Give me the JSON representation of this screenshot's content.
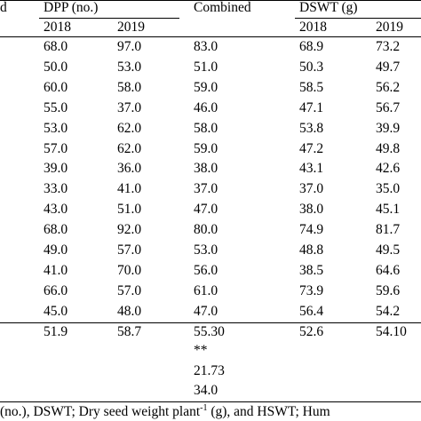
{
  "header": {
    "fragment": "d",
    "dpp": "DPP (no.)",
    "combined": "Combined",
    "dswt": "DSWT (g)",
    "dpp_years": [
      "2018",
      "2019"
    ],
    "dswt_years": [
      "2018",
      "2019"
    ]
  },
  "rows": [
    {
      "dpp_2018": "68.0",
      "dpp_2019": "97.0",
      "combined": "83.0",
      "dswt_2018": "68.9",
      "dswt_2019": "73.2"
    },
    {
      "dpp_2018": "50.0",
      "dpp_2019": "53.0",
      "combined": "51.0",
      "dswt_2018": "50.3",
      "dswt_2019": "49.7"
    },
    {
      "dpp_2018": "60.0",
      "dpp_2019": "58.0",
      "combined": "59.0",
      "dswt_2018": "58.5",
      "dswt_2019": "56.2"
    },
    {
      "dpp_2018": "55.0",
      "dpp_2019": "37.0",
      "combined": "46.0",
      "dswt_2018": "47.1",
      "dswt_2019": "56.7"
    },
    {
      "dpp_2018": "53.0",
      "dpp_2019": "62.0",
      "combined": "58.0",
      "dswt_2018": "53.8",
      "dswt_2019": "39.9"
    },
    {
      "dpp_2018": "57.0",
      "dpp_2019": "62.0",
      "combined": "59.0",
      "dswt_2018": "47.2",
      "dswt_2019": "49.8"
    },
    {
      "dpp_2018": "39.0",
      "dpp_2019": "36.0",
      "combined": "38.0",
      "dswt_2018": "43.1",
      "dswt_2019": "42.6"
    },
    {
      "dpp_2018": "33.0",
      "dpp_2019": "41.0",
      "combined": "37.0",
      "dswt_2018": "37.0",
      "dswt_2019": "35.0"
    },
    {
      "dpp_2018": "43.0",
      "dpp_2019": "51.0",
      "combined": "47.0",
      "dswt_2018": "38.0",
      "dswt_2019": "45.1"
    },
    {
      "dpp_2018": "68.0",
      "dpp_2019": "92.0",
      "combined": "80.0",
      "dswt_2018": "74.9",
      "dswt_2019": "81.7"
    },
    {
      "dpp_2018": "49.0",
      "dpp_2019": "57.0",
      "combined": "53.0",
      "dswt_2018": "48.8",
      "dswt_2019": "49.5"
    },
    {
      "dpp_2018": "41.0",
      "dpp_2019": "70.0",
      "combined": "56.0",
      "dswt_2018": "38.5",
      "dswt_2019": "64.6"
    },
    {
      "dpp_2018": "66.0",
      "dpp_2019": "57.0",
      "combined": "61.0",
      "dswt_2018": "73.9",
      "dswt_2019": "59.6"
    },
    {
      "dpp_2018": "45.0",
      "dpp_2019": "48.0",
      "combined": "47.0",
      "dswt_2018": "56.4",
      "dswt_2019": "54.2"
    }
  ],
  "mean": {
    "dpp_2018": "51.9",
    "dpp_2019": "58.7",
    "combined": "55.30",
    "dswt_2018": "52.6",
    "dswt_2019": "54.10"
  },
  "stats": {
    "significance": "**",
    "value_1": "21.73",
    "value_2": "34.0"
  },
  "footnote": {
    "part1": "(no.), DSWT; Dry seed weight plant",
    "sup": "-1",
    "part2": " (g), and HSWT; Hum"
  }
}
